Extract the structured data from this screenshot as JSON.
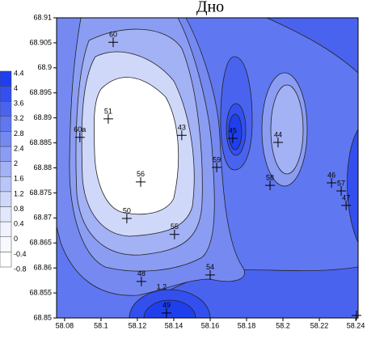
{
  "chart_data": {
    "type": "contour",
    "title": "Дно",
    "xlim": [
      58.0756,
      58.2413
    ],
    "ylim": [
      68.85,
      68.91
    ],
    "xticks": [
      58.08,
      58.1,
      58.12,
      58.14,
      58.16,
      58.18,
      58.2,
      58.22,
      58.24
    ],
    "yticks": [
      68.85,
      68.855,
      68.86,
      68.865,
      68.87,
      68.875,
      68.88,
      68.885,
      68.89,
      68.895,
      68.9,
      68.905,
      68.91
    ],
    "points": [
      {
        "label": "60",
        "x": 58.1067,
        "y": 68.9051
      },
      {
        "label": "51",
        "x": 58.104,
        "y": 68.8898
      },
      {
        "label": "60a",
        "x": 58.0884,
        "y": 68.8861
      },
      {
        "label": "43",
        "x": 58.1444,
        "y": 68.8865
      },
      {
        "label": "56",
        "x": 58.1218,
        "y": 68.8772
      },
      {
        "label": "50",
        "x": 58.1142,
        "y": 68.8699
      },
      {
        "label": "55",
        "x": 58.1404,
        "y": 68.8667
      },
      {
        "label": "48",
        "x": 58.1222,
        "y": 68.8573
      },
      {
        "label": "49",
        "x": 58.136,
        "y": 68.851
      },
      {
        "label": "54",
        "x": 58.16,
        "y": 68.8586
      },
      {
        "label": "45",
        "x": 58.1724,
        "y": 68.8859
      },
      {
        "label": "59",
        "x": 58.1636,
        "y": 68.8801
      },
      {
        "label": "44",
        "x": 58.1973,
        "y": 68.8851
      },
      {
        "label": "58",
        "x": 58.1929,
        "y": 68.8765
      },
      {
        "label": "46",
        "x": 58.2267,
        "y": 68.877
      },
      {
        "label": "57",
        "x": 58.232,
        "y": 68.8754
      },
      {
        "label": "47",
        "x": 58.2347,
        "y": 68.8725
      },
      {
        "x": 58.2404,
        "y": 68.8505
      }
    ],
    "annotations": [
      {
        "text": "1.2",
        "x": 58.1333,
        "y": 68.8561
      }
    ],
    "colorbar": {
      "levels": [
        4.4,
        4,
        3.6,
        3.2,
        2.8,
        2.4,
        2,
        1.6,
        1.2,
        0.8,
        0.4,
        0,
        -0.4,
        -0.8
      ],
      "colors": [
        "#1f3fef",
        "#3350ee",
        "#4a63ef",
        "#5f77f0",
        "#7589f1",
        "#8b9df3",
        "#a3b1f5",
        "#bac5f8",
        "#d0d8fa",
        "#e2e7fc",
        "#f0f3fe",
        "#f8f9ff",
        "#ffffff"
      ]
    }
  }
}
